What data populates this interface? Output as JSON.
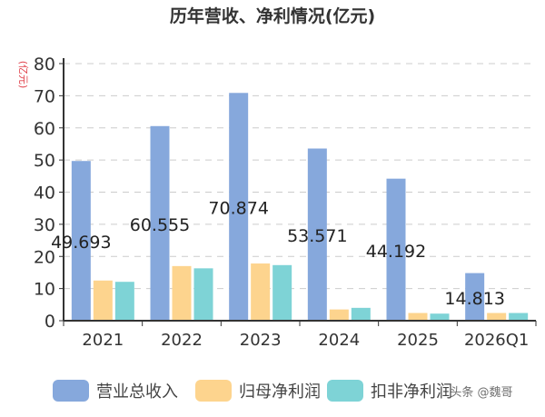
{
  "chart_data": {
    "type": "bar",
    "title": "历年营收、净利情况(亿元)",
    "ylabel": "(亿元)",
    "xlabel": "",
    "ylim": [
      0,
      80
    ],
    "yticks": [
      0,
      10,
      20,
      30,
      40,
      50,
      60,
      70,
      80
    ],
    "grid": true,
    "legend_position": "bottom",
    "categories": [
      "2021",
      "2022",
      "2023",
      "2024",
      "2025",
      "2026Q1"
    ],
    "series": [
      {
        "name": "营业总收入",
        "color": "#86a8dc",
        "values": [
          49.693,
          60.555,
          70.874,
          53.571,
          44.192,
          14.813
        ],
        "labels": [
          "49.693",
          "60.555",
          "70.874",
          "53.571",
          "44.192",
          "14.813"
        ]
      },
      {
        "name": "归母净利润",
        "color": "#fdd48e",
        "values": [
          12.5,
          17.0,
          17.8,
          3.5,
          2.4,
          2.4
        ]
      },
      {
        "name": "扣非净利润",
        "color": "#7ed3d6",
        "values": [
          12.1,
          16.3,
          17.3,
          4.0,
          2.2,
          2.4
        ]
      }
    ]
  },
  "watermark": "头条 @魏哥"
}
